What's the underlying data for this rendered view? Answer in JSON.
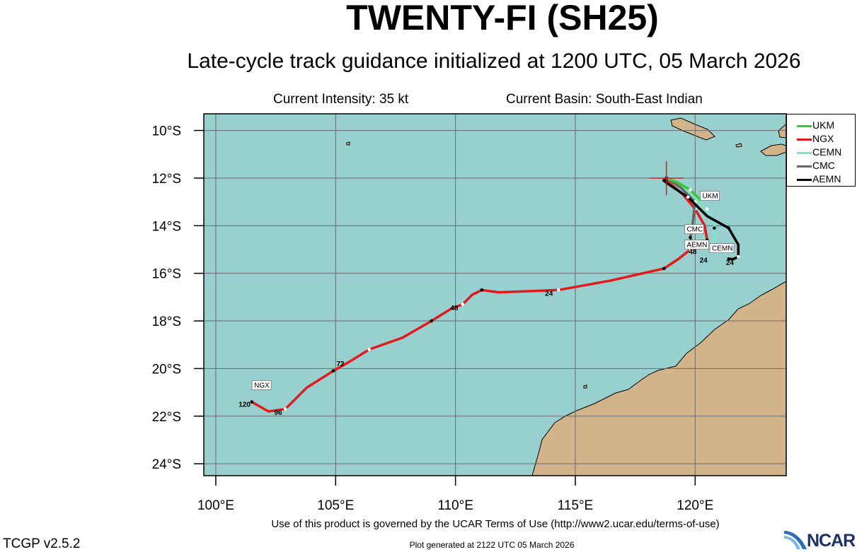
{
  "title": "TWENTY-FI (SH25)",
  "subtitle": "Late-cycle track guidance initialized at 1200 UTC, 05 March 2026",
  "intensity": "Current Intensity: 35 kt",
  "basin": "Current Basin: South-East Indian",
  "map": {
    "lon_range": [
      99.5,
      123.8
    ],
    "lat_range": [
      -24.5,
      -9.3
    ],
    "lon_ticks": [
      "100°E",
      "105°E",
      "110°E",
      "115°E",
      "120°E"
    ],
    "lat_ticks": [
      "10°S",
      "12°S",
      "14°S",
      "16°S",
      "18°S",
      "20°S",
      "22°S",
      "24°S"
    ],
    "ocean_color": "#98cfcf",
    "land_color": "#d2b38a",
    "grid_color": "#6a6a6a",
    "current_position": [
      118.8,
      -12.0
    ]
  },
  "legend": [
    {
      "label": "UKM",
      "color": "#33cc33"
    },
    {
      "label": "NGX",
      "color": "#e31a1c"
    },
    {
      "label": "CEMN",
      "color": "#7fe5c9"
    },
    {
      "label": "CMC",
      "color": "#666666"
    },
    {
      "label": "AEMN",
      "color": "#000000"
    }
  ],
  "chart_data": {
    "type": "track-map",
    "tracks": [
      {
        "name": "UKM",
        "color": "#33cc33",
        "points": [
          [
            118.8,
            -12.0
          ],
          [
            119.3,
            -12.2
          ],
          [
            119.8,
            -12.5
          ],
          [
            120.2,
            -12.9
          ]
        ],
        "end_label": "UKM",
        "end_label_lonlat": [
          120.3,
          -12.85
        ]
      },
      {
        "name": "CEMN",
        "color": "#7fe5c9",
        "points": [
          [
            118.8,
            -12.0
          ],
          [
            119.7,
            -12.6
          ],
          [
            120.5,
            -13.3
          ],
          [
            120.8,
            -13.8
          ],
          [
            120.8,
            -14.1
          ],
          [
            120.8,
            -15.0
          ]
        ],
        "end_label": "CEMN",
        "end_label_lonlat": [
          120.7,
          -15.05
        ],
        "hour_labels": [
          {
            "text": "24",
            "lonlat": [
              120.35,
              -15.55
            ]
          }
        ]
      },
      {
        "name": "CMC",
        "color": "#666666",
        "points": [
          [
            118.8,
            -12.0
          ],
          [
            119.4,
            -12.4
          ],
          [
            120.0,
            -13.0
          ],
          [
            119.9,
            -13.9
          ],
          [
            119.8,
            -14.5
          ],
          [
            119.9,
            -14.9
          ]
        ],
        "end_label": "CMC",
        "end_label_lonlat": [
          119.65,
          -14.25
        ],
        "hour_labels": [
          {
            "text": "48",
            "lonlat": [
              119.9,
              -15.2
            ]
          }
        ]
      },
      {
        "name": "AEMN",
        "color": "#000000",
        "points": [
          [
            118.7,
            -12.1
          ],
          [
            118.8,
            -12.2
          ],
          [
            119.7,
            -12.8
          ],
          [
            120.5,
            -13.6
          ],
          [
            121.4,
            -14.1
          ],
          [
            121.8,
            -14.8
          ],
          [
            121.8,
            -15.3
          ],
          [
            121.6,
            -15.4
          ],
          [
            121.4,
            -15.4
          ]
        ],
        "end_label": "AEMN",
        "end_label_lonlat": [
          119.65,
          -14.9
        ],
        "hour_labels": [
          {
            "text": "24",
            "lonlat": [
              121.45,
              -15.65
            ]
          }
        ]
      },
      {
        "name": "NGX",
        "color": "#e31a1c",
        "points": [
          [
            118.8,
            -12.1
          ],
          [
            119.5,
            -12.7
          ],
          [
            120.0,
            -13.3
          ],
          [
            120.4,
            -14.0
          ],
          [
            120.5,
            -14.6
          ],
          [
            120.2,
            -14.8
          ],
          [
            119.8,
            -15.0
          ],
          [
            119.3,
            -15.4
          ],
          [
            118.7,
            -15.8
          ],
          [
            116.5,
            -16.3
          ],
          [
            114.3,
            -16.7
          ],
          [
            111.8,
            -16.8
          ],
          [
            111.1,
            -16.7
          ],
          [
            110.7,
            -16.9
          ],
          [
            110.3,
            -17.3
          ],
          [
            109.8,
            -17.5
          ],
          [
            109.0,
            -18.0
          ],
          [
            107.8,
            -18.7
          ],
          [
            106.4,
            -19.2
          ],
          [
            105.6,
            -19.7
          ],
          [
            104.9,
            -20.1
          ],
          [
            103.8,
            -20.8
          ],
          [
            102.9,
            -21.7
          ],
          [
            102.2,
            -21.8
          ],
          [
            101.5,
            -21.4
          ]
        ],
        "end_label": "NGX",
        "end_label_lonlat": [
          101.6,
          -20.8
        ],
        "hour_labels": [
          {
            "text": "24",
            "lonlat": [
              113.9,
              -16.95
            ]
          },
          {
            "text": "48",
            "lonlat": [
              109.95,
              -17.55
            ]
          },
          {
            "text": "72",
            "lonlat": [
              105.2,
              -19.9
            ]
          },
          {
            "text": "96",
            "lonlat": [
              102.6,
              -21.95
            ]
          },
          {
            "text": "120",
            "lonlat": [
              101.2,
              -21.6
            ]
          }
        ]
      }
    ]
  },
  "terms": "Use of this product is governed by the UCAR Terms of Use (http://www2.ucar.edu/terms-of-use)",
  "version": "TCGP v2.5.2",
  "generated": "Plot generated at 2122 UTC   05 March 2026",
  "logo_text": "NCAR"
}
